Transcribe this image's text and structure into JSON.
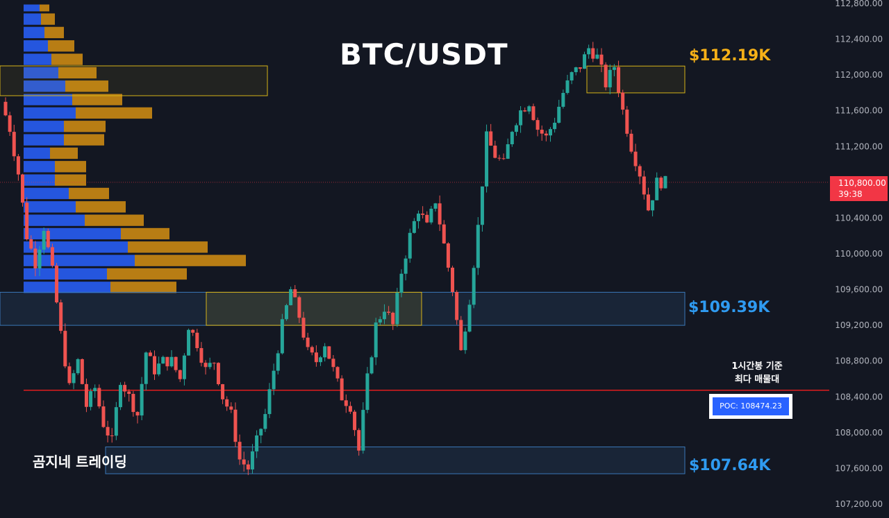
{
  "title": "BTC/USDT",
  "zone_labels": {
    "top": "$112.19K",
    "middle": "$109.39K",
    "low": "$107.64K"
  },
  "note": {
    "line1": "1시간봉 기준",
    "line2": "최다 매물대"
  },
  "poc": {
    "label": "POC: 108474.23",
    "price": 108474.23
  },
  "watermark": "곰지네 트레이딩",
  "current_price": {
    "value": "110,800.00",
    "countdown": "39:38"
  },
  "colors": {
    "background": "#131722",
    "up": "#26a69a",
    "down": "#ef5350",
    "poc_line": "#e11d1d",
    "vp_buy": "#2962ff",
    "vp_sell": "#f0a010",
    "zone_yellow": "#d6b318",
    "zone_blue": "#3a78b8"
  },
  "chart_data": {
    "type": "candlestick",
    "ylim": [
      107000,
      112900
    ],
    "y_ticks": [
      "107,200.00",
      "107,600.00",
      "108,000.00",
      "108,400.00",
      "108,800.00",
      "109,200.00",
      "109,600.00",
      "110,000.00",
      "110,400.00",
      "110,800.00",
      "111,200.00",
      "111,600.00",
      "112,000.00",
      "112,400.00",
      "112,800.00"
    ],
    "y_tick_values": [
      107200,
      107600,
      108000,
      108400,
      108800,
      109200,
      109600,
      110000,
      110400,
      110800,
      111200,
      111600,
      112000,
      112400,
      112800
    ],
    "close_path": [
      111700,
      111400,
      110900,
      110200,
      109900,
      110300,
      109800,
      109100,
      108500,
      108800,
      108300,
      108500,
      108100,
      107900,
      108600,
      108400,
      108200,
      108900,
      108700,
      108800,
      108800,
      108600,
      109200,
      109000,
      108700,
      108800,
      108400,
      108200,
      107700,
      107600,
      107900,
      108200,
      108700,
      109200,
      109600,
      109300,
      108900,
      108800,
      109000,
      108700,
      108400,
      108300,
      107800,
      108600,
      109200,
      109400,
      109200,
      109800,
      110200,
      110500,
      110300,
      110600,
      110100,
      109600,
      108900,
      109500,
      110300,
      111300,
      111100,
      111000,
      111400,
      111600,
      111700,
      111400,
      111300,
      111500,
      111800,
      112000,
      112100,
      112300,
      112200,
      111900,
      112100,
      111600,
      111200,
      110900,
      110500,
      110800,
      110800
    ],
    "volume_profile": [
      {
        "price_low": 112700,
        "price_high": 112800,
        "buy": 23,
        "sell": 14
      },
      {
        "price_low": 112550,
        "price_high": 112700,
        "buy": 25,
        "sell": 20
      },
      {
        "price_low": 112400,
        "price_high": 112550,
        "buy": 30,
        "sell": 28
      },
      {
        "price_low": 112250,
        "price_high": 112400,
        "buy": 35,
        "sell": 38
      },
      {
        "price_low": 112100,
        "price_high": 112250,
        "buy": 40,
        "sell": 45
      },
      {
        "price_low": 111950,
        "price_high": 112100,
        "buy": 50,
        "sell": 55
      },
      {
        "price_low": 111800,
        "price_high": 111950,
        "buy": 60,
        "sell": 62
      },
      {
        "price_low": 111650,
        "price_high": 111800,
        "buy": 70,
        "sell": 72
      },
      {
        "price_low": 111500,
        "price_high": 111650,
        "buy": 75,
        "sell": 110
      },
      {
        "price_low": 111350,
        "price_high": 111500,
        "buy": 58,
        "sell": 60
      },
      {
        "price_low": 111200,
        "price_high": 111350,
        "buy": 58,
        "sell": 58
      },
      {
        "price_low": 111050,
        "price_high": 111200,
        "buy": 38,
        "sell": 40
      },
      {
        "price_low": 110900,
        "price_high": 111050,
        "buy": 45,
        "sell": 45
      },
      {
        "price_low": 110750,
        "price_high": 110900,
        "buy": 45,
        "sell": 45
      },
      {
        "price_low": 110600,
        "price_high": 110750,
        "buy": 65,
        "sell": 58
      },
      {
        "price_low": 110450,
        "price_high": 110600,
        "buy": 75,
        "sell": 72
      },
      {
        "price_low": 110300,
        "price_high": 110450,
        "buy": 88,
        "sell": 85
      },
      {
        "price_low": 110150,
        "price_high": 110300,
        "buy": 140,
        "sell": 70
      },
      {
        "price_low": 110000,
        "price_high": 110150,
        "buy": 150,
        "sell": 115
      },
      {
        "price_low": 109850,
        "price_high": 110000,
        "buy": 160,
        "sell": 160
      },
      {
        "price_low": 109700,
        "price_high": 109850,
        "buy": 120,
        "sell": 115
      },
      {
        "price_low": 109550,
        "price_high": 109700,
        "buy": 125,
        "sell": 95
      }
    ],
    "zones": [
      {
        "name": "upper-resistance",
        "from": 111800,
        "to": 112100,
        "color": "yellow"
      },
      {
        "name": "mid-zone",
        "from": 109200,
        "to": 109570,
        "color": "blue"
      },
      {
        "name": "lower-support",
        "from": 107540,
        "to": 107840,
        "color": "blue"
      }
    ],
    "current_price": 110800
  }
}
